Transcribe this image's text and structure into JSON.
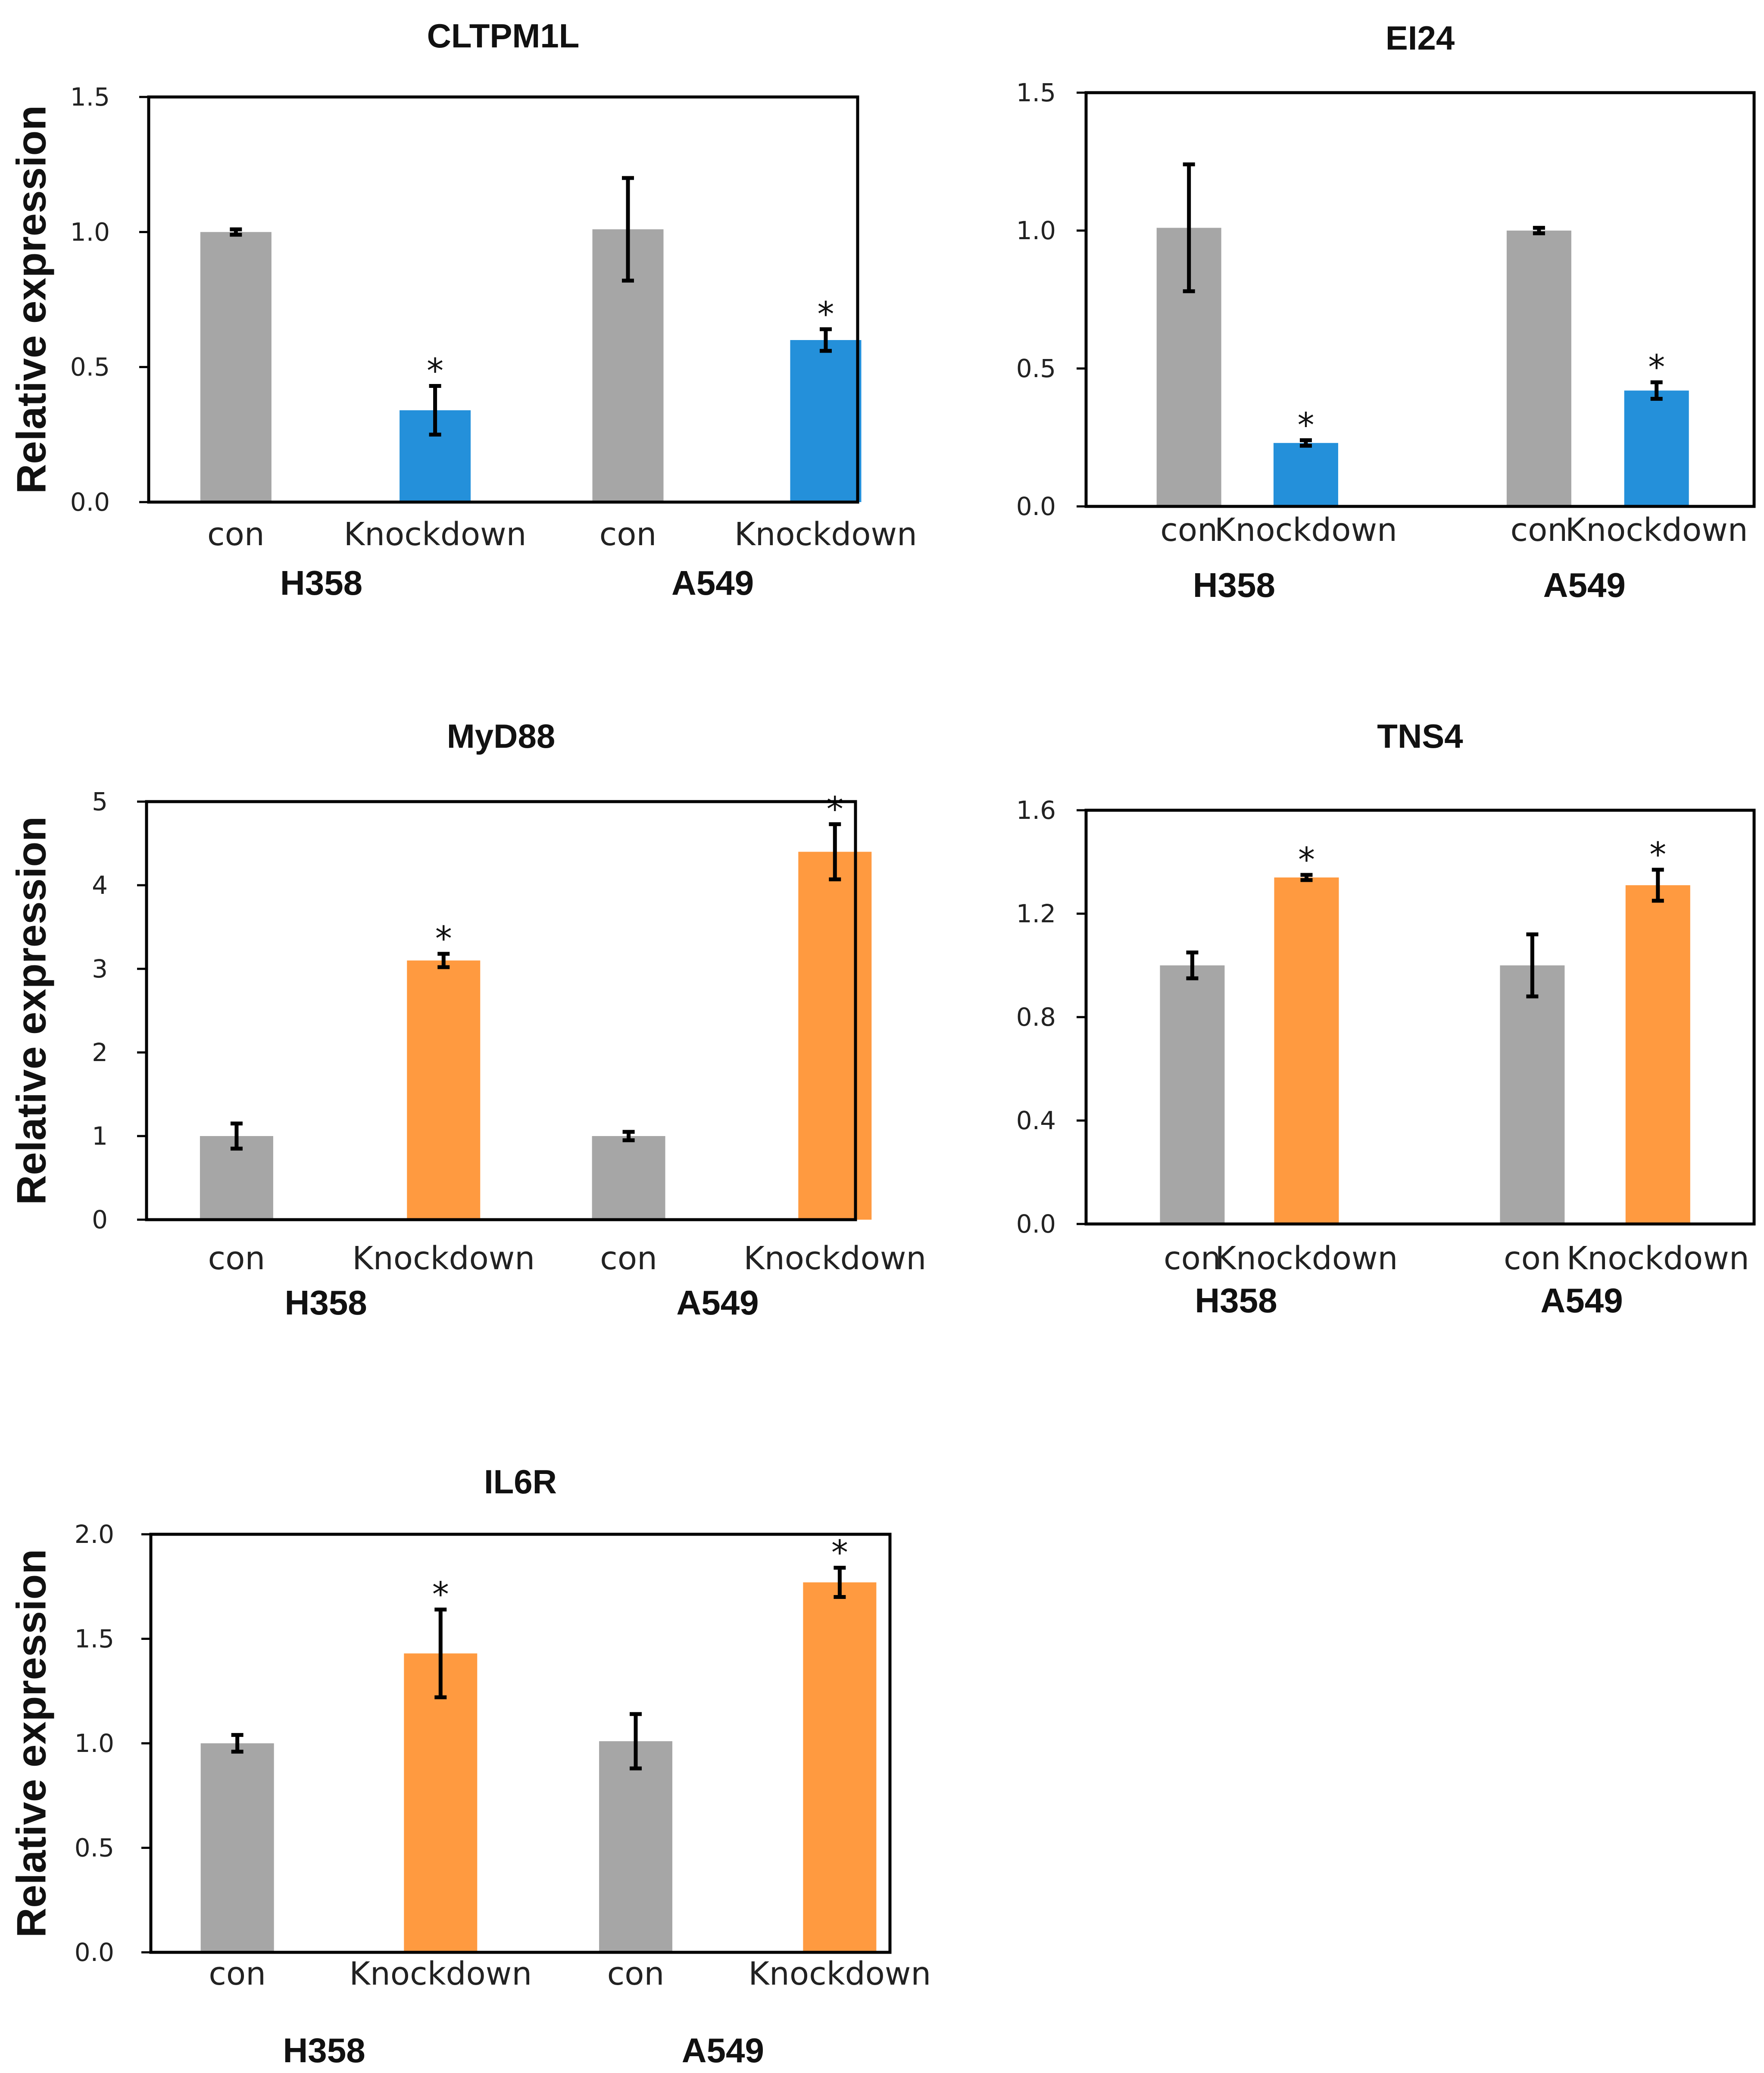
{
  "colors": {
    "control": "#A6A6A6",
    "knockdown_blue": "#2490DA",
    "knockdown_orange": "#FF9A40",
    "axis": "#000000",
    "error_bar": "#000000"
  },
  "chart_data": [
    {
      "type": "bar",
      "title": "CLTPM1L",
      "ylabel": "Relative expression",
      "xlabel": "",
      "ylim": [
        0,
        1.5
      ],
      "yticks": [
        "0.0",
        "0.5",
        "1.0",
        "1.5"
      ],
      "categories": [
        "con",
        "Knockdown",
        "con",
        "Knockdown"
      ],
      "groups": [
        "H358",
        "A549"
      ],
      "values": [
        1.0,
        0.34,
        1.01,
        0.6
      ],
      "errors": [
        0.01,
        0.09,
        0.19,
        0.04
      ],
      "significant": [
        false,
        true,
        false,
        true
      ],
      "sig_marker": "*",
      "bar_colors": [
        "control",
        "knockdown_blue",
        "control",
        "knockdown_blue"
      ],
      "grid": false
    },
    {
      "type": "bar",
      "title": "EI24",
      "ylabel": "",
      "xlabel": "",
      "ylim": [
        0,
        1.5
      ],
      "yticks": [
        "0.0",
        "0.5",
        "1.0",
        "1.5"
      ],
      "categories": [
        "con",
        "Knockdown",
        "con",
        "Knockdown"
      ],
      "groups": [
        "H358",
        "A549"
      ],
      "values": [
        1.01,
        0.23,
        1.0,
        0.42
      ],
      "errors": [
        0.23,
        0.01,
        0.01,
        0.03
      ],
      "significant": [
        false,
        true,
        false,
        true
      ],
      "sig_marker": "*",
      "bar_colors": [
        "control",
        "knockdown_blue",
        "control",
        "knockdown_blue"
      ],
      "grid": false
    },
    {
      "type": "bar",
      "title": "MyD88",
      "ylabel": "Relative expression",
      "xlabel": "",
      "ylim": [
        0,
        5
      ],
      "yticks": [
        "0",
        "1",
        "2",
        "3",
        "4",
        "5"
      ],
      "categories": [
        "con",
        "Knockdown",
        "con",
        "Knockdown"
      ],
      "groups": [
        "H358",
        "A549"
      ],
      "values": [
        1.0,
        3.1,
        1.0,
        4.4
      ],
      "errors": [
        0.15,
        0.08,
        0.05,
        0.33
      ],
      "significant": [
        false,
        true,
        false,
        true
      ],
      "sig_marker": "*",
      "bar_colors": [
        "control",
        "knockdown_orange",
        "control",
        "knockdown_orange"
      ],
      "grid": false
    },
    {
      "type": "bar",
      "title": "TNS4",
      "ylabel": "",
      "xlabel": "",
      "ylim": [
        0,
        1.6
      ],
      "yticks": [
        "0.0",
        "0.4",
        "0.8",
        "1.2",
        "1.6"
      ],
      "categories": [
        "con",
        "Knockdown",
        "con",
        "Knockdown"
      ],
      "groups": [
        "H358",
        "A549"
      ],
      "values": [
        1.0,
        1.34,
        1.0,
        1.31
      ],
      "errors": [
        0.05,
        0.01,
        0.12,
        0.06
      ],
      "significant": [
        false,
        true,
        false,
        true
      ],
      "sig_marker": "*",
      "bar_colors": [
        "control",
        "knockdown_orange",
        "control",
        "knockdown_orange"
      ],
      "grid": false
    },
    {
      "type": "bar",
      "title": "IL6R",
      "ylabel": "Relative expression",
      "xlabel": "",
      "ylim": [
        0,
        2.0
      ],
      "yticks": [
        "0.0",
        "0.5",
        "1.0",
        "1.5",
        "2.0"
      ],
      "categories": [
        "con",
        "Knockdown",
        "con",
        "Knockdown"
      ],
      "groups": [
        "H358",
        "A549"
      ],
      "values": [
        1.0,
        1.43,
        1.01,
        1.77
      ],
      "errors": [
        0.04,
        0.21,
        0.13,
        0.07
      ],
      "significant": [
        false,
        true,
        false,
        true
      ],
      "sig_marker": "*",
      "bar_colors": [
        "control",
        "knockdown_orange",
        "control",
        "knockdown_orange"
      ],
      "grid": false
    }
  ]
}
